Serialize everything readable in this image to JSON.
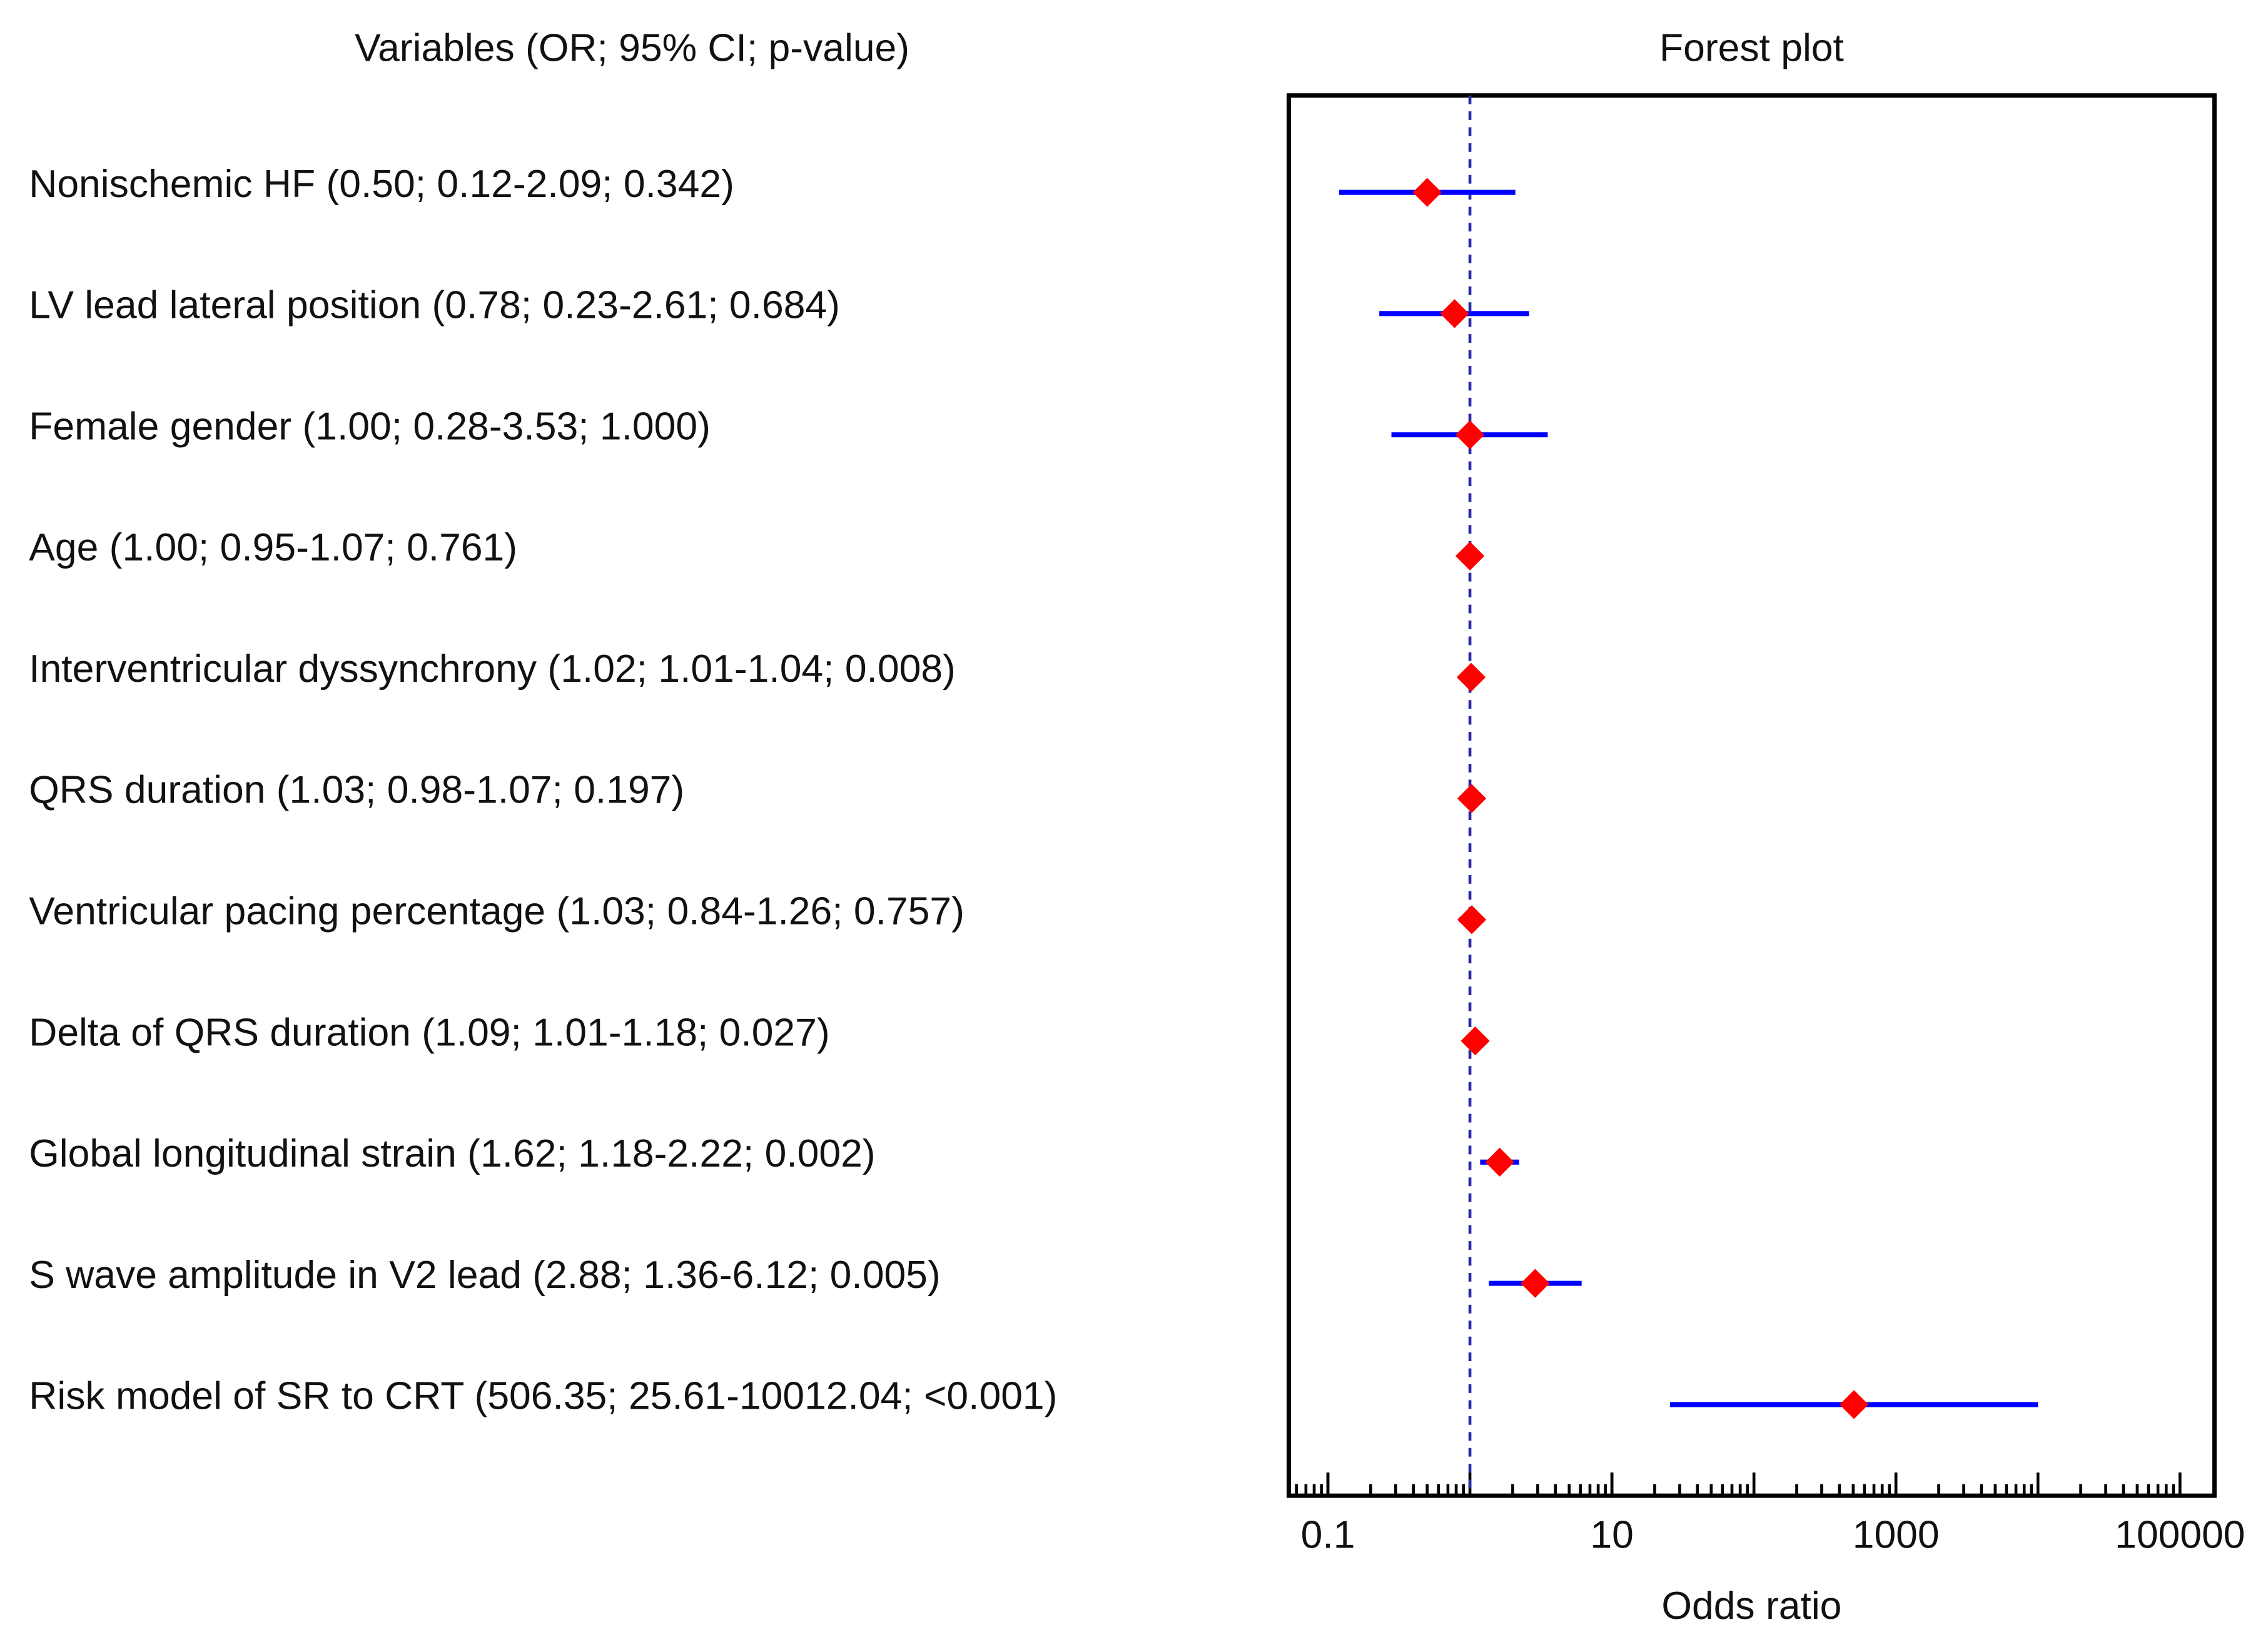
{
  "chart_data": {
    "type": "forest",
    "column_title": "Variables (OR; 95% CI; p-value)",
    "title": "Forest plot",
    "xlabel": "Odds ratio",
    "categories": [
      "Nonischemic HF (0.50; 0.12-2.09; 0.342)",
      "LV lead lateral position (0.78; 0.23-2.61; 0.684)",
      "Female gender (1.00; 0.28-3.53; 1.000)",
      "Age (1.00; 0.95-1.07; 0.761)",
      "Interventricular dyssynchrony (1.02; 1.01-1.04; 0.008)",
      "QRS duration (1.03; 0.98-1.07; 0.197)",
      "Ventricular pacing percentage (1.03; 0.84-1.26; 0.757)",
      "Delta of QRS duration (1.09; 1.01-1.18; 0.027)",
      "Global longitudinal strain (1.62; 1.18-2.22; 0.002)",
      "S wave amplitude in V2 lead (2.88; 1.36-6.12; 0.005)",
      "Risk model of SR to CRT (506.35; 25.61-10012.04; <0.001)"
    ],
    "values": [
      0.5,
      0.78,
      1.0,
      1.0,
      1.02,
      1.03,
      1.03,
      1.09,
      1.62,
      2.88,
      506.35
    ],
    "lower": [
      0.12,
      0.23,
      0.28,
      0.95,
      1.01,
      0.98,
      0.84,
      1.01,
      1.18,
      1.36,
      25.61
    ],
    "upper": [
      2.09,
      2.61,
      3.53,
      1.07,
      1.04,
      1.07,
      1.26,
      1.18,
      2.22,
      6.12,
      10012.04
    ],
    "point_color": "#ff0000",
    "ci_color": "#0000ff",
    "reference_line": 1,
    "reference_color": "#2a2aa8",
    "xscale": "log",
    "xlim": [
      0.053,
      175000
    ],
    "xticks": [
      0.1,
      10,
      1000,
      100000
    ]
  }
}
